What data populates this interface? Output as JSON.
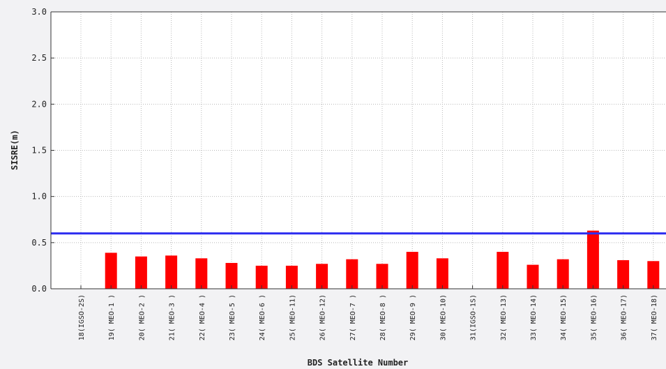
{
  "chart_data": {
    "type": "bar",
    "title": "",
    "xlabel": "BDS Satellite Number",
    "ylabel": "SISRE(m)",
    "ylim": [
      0.0,
      3.0
    ],
    "yticks": [
      "0.0",
      "0.5",
      "1.0",
      "1.5",
      "2.0",
      "2.5",
      "3.0"
    ],
    "grid": true,
    "categories": [
      "18(IGSO-2S)",
      "19( MEO-1 )",
      "20( MEO-2 )",
      "21( MEO-3 )",
      "22( MEO-4 )",
      "23( MEO-5 )",
      "24( MEO-6 )",
      "25( MEO-11)",
      "26( MEO-12)",
      "27( MEO-7 )",
      "28( MEO-8 )",
      "29( MEO-9 )",
      "30( MEO-10)",
      "31(IGSO-1S)",
      "32( MEO-13)",
      "33( MEO-14)",
      "34( MEO-15)",
      "35( MEO-16)",
      "36( MEO-17)",
      "37( MEO-18)"
    ],
    "values": [
      0.0,
      0.39,
      0.35,
      0.36,
      0.33,
      0.28,
      0.25,
      0.25,
      0.27,
      0.32,
      0.27,
      0.4,
      0.33,
      0.0,
      0.4,
      0.26,
      0.32,
      0.63,
      0.31,
      0.3
    ],
    "reference_line": 0.6,
    "colors": {
      "bar": "#ff0000",
      "reference_line": "#2e2ef0",
      "grid": "#b8b8b8",
      "axis": "#333333"
    }
  }
}
